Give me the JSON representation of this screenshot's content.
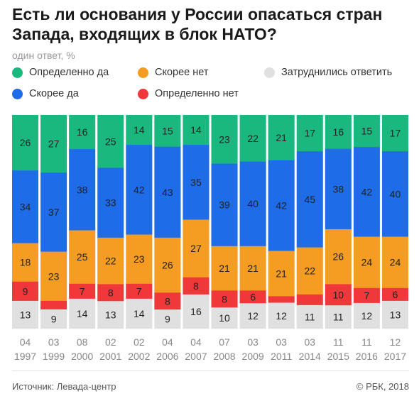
{
  "title": "Есть ли основания у России опасаться стран Запада, входящих в блок НАТО?",
  "subtitle": "один ответ, %",
  "source": "Источник: Левада-центр",
  "copyright": "© РБК, 2018",
  "colors": {
    "definitely_yes": "#1ab87f",
    "rather_yes": "#1f6ce8",
    "rather_no": "#f59d22",
    "definitely_no": "#f0373a",
    "hard_to_say": "#e0e0e0"
  },
  "legend": [
    {
      "key": "definitely_yes",
      "label": "Определенно да"
    },
    {
      "key": "rather_no",
      "label": "Скорее нет"
    },
    {
      "key": "hard_to_say",
      "label": "Затруднились ответить"
    },
    {
      "key": "rather_yes",
      "label": "Скорее да"
    },
    {
      "key": "definitely_no",
      "label": "Определенно нет"
    }
  ],
  "chart_data": {
    "type": "bar",
    "stacked": true,
    "normalized": true,
    "categories": [
      {
        "month": "04",
        "year": "1997"
      },
      {
        "month": "03",
        "year": "1999"
      },
      {
        "month": "08",
        "year": "2000"
      },
      {
        "month": "02",
        "year": "2001"
      },
      {
        "month": "02",
        "year": "2002"
      },
      {
        "month": "04",
        "year": "2006"
      },
      {
        "month": "04",
        "year": "2007"
      },
      {
        "month": "07",
        "year": "2008"
      },
      {
        "month": "03",
        "year": "2009"
      },
      {
        "month": "03",
        "year": "2011"
      },
      {
        "month": "03",
        "year": "2014"
      },
      {
        "month": "11",
        "year": "2015"
      },
      {
        "month": "11",
        "year": "2016"
      },
      {
        "month": "12",
        "year": "2017"
      }
    ],
    "series": [
      {
        "key": "definitely_yes",
        "name": "Определенно да",
        "values": [
          26,
          27,
          16,
          25,
          14,
          15,
          14,
          23,
          22,
          21,
          17,
          16,
          15,
          17
        ]
      },
      {
        "key": "rather_yes",
        "name": "Скорее да",
        "values": [
          34,
          37,
          38,
          33,
          42,
          43,
          35,
          39,
          40,
          42,
          45,
          38,
          42,
          40
        ]
      },
      {
        "key": "rather_no",
        "name": "Скорее нет",
        "values": [
          18,
          23,
          25,
          22,
          23,
          26,
          27,
          21,
          21,
          21,
          22,
          26,
          24,
          24
        ]
      },
      {
        "key": "definitely_no",
        "name": "Определенно нет",
        "values": [
          9,
          4,
          7,
          8,
          7,
          8,
          8,
          8,
          6,
          3,
          5,
          10,
          7,
          6
        ]
      },
      {
        "key": "hard_to_say",
        "name": "Затруднились ответить",
        "values": [
          13,
          9,
          14,
          13,
          14,
          9,
          16,
          10,
          12,
          12,
          11,
          11,
          12,
          13
        ]
      }
    ],
    "value_labels_shown": {
      "definitely_no": [
        true,
        false,
        true,
        true,
        true,
        true,
        true,
        true,
        true,
        false,
        false,
        true,
        true,
        true
      ]
    }
  }
}
